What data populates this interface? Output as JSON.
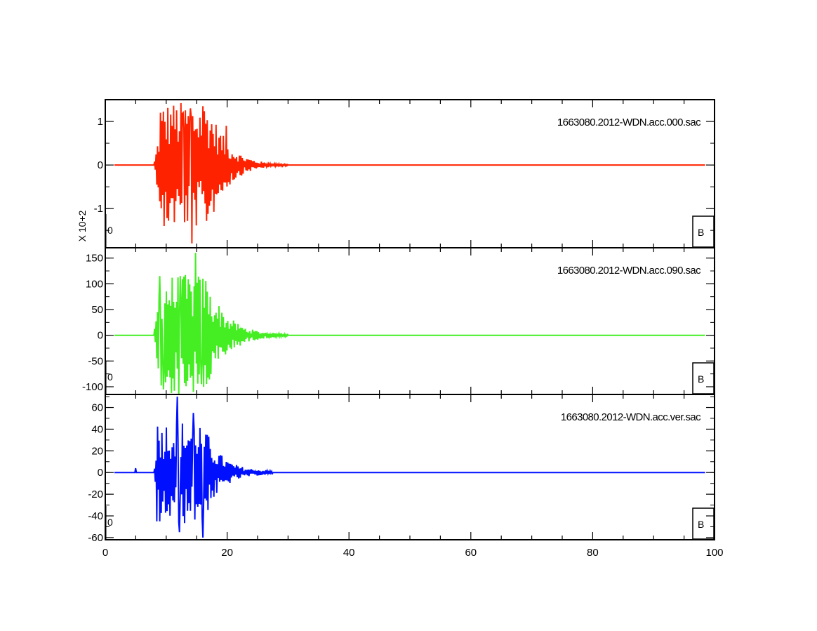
{
  "chart_data": {
    "type": "line",
    "x_range": [
      0,
      100
    ],
    "x_ticks": [
      0,
      20,
      40,
      60,
      80,
      100
    ],
    "x_tick_labels": [
      "0",
      "20",
      "40",
      "60",
      "80",
      "100"
    ],
    "grid": false,
    "panels": [
      {
        "title": "1663080.2012-WDN.acc.000.sac",
        "color": "#ff2200",
        "scale_label": "X 10+2",
        "y_range": [
          -1.9,
          1.5
        ],
        "y_ticks": [
          1,
          0,
          -1
        ],
        "y_tick_labels": [
          "1",
          "0",
          "-1"
        ],
        "begin_marker": "0",
        "end_marker": "B",
        "envelope": {
          "onset": 8.0,
          "peak_start": 9.5,
          "peak_end": 17.0,
          "end": 30.0,
          "pre_amp": 0.01,
          "peak_amp": 1.45,
          "tail_amp": 0.02
        },
        "peak_points": [
          [
            9.0,
            1.2
          ],
          [
            9.6,
            -1.4
          ],
          [
            11.0,
            0.9
          ],
          [
            12.8,
            1.2
          ],
          [
            14.0,
            1.3
          ],
          [
            14.2,
            -1.8
          ],
          [
            16.0,
            1.35
          ],
          [
            19.9,
            0.9
          ]
        ]
      },
      {
        "title": "1663080.2012-WDN.acc.090.sac",
        "color": "#44ee22",
        "scale_label": "",
        "y_range": [
          -115,
          170
        ],
        "y_ticks": [
          150,
          100,
          50,
          0,
          -50,
          -100
        ],
        "y_tick_labels": [
          "150",
          "100",
          "50",
          "0",
          "-50",
          "-100"
        ],
        "begin_marker": "0",
        "end_marker": "B",
        "envelope": {
          "onset": 8.0,
          "peak_start": 9.0,
          "peak_end": 16.5,
          "end": 30.0,
          "pre_amp": 3,
          "peak_amp": 118,
          "tail_amp": 3
        },
        "peak_points": [
          [
            8.9,
            115
          ],
          [
            9.5,
            -105
          ],
          [
            12.3,
            115
          ],
          [
            14.8,
            160
          ],
          [
            15.8,
            -95
          ],
          [
            17.2,
            75
          ]
        ]
      },
      {
        "title": "1663080.2012-WDN.acc.ver.sac",
        "color": "#0010ff",
        "scale_label": "",
        "y_range": [
          -62,
          72
        ],
        "y_ticks": [
          60,
          40,
          20,
          0,
          -20,
          -40,
          -60
        ],
        "y_tick_labels": [
          "60",
          "40",
          "20",
          "0",
          "-20",
          "-40",
          "-60"
        ],
        "begin_marker": "0",
        "end_marker": "B",
        "envelope": {
          "onset": 8.0,
          "peak_start": 8.5,
          "peak_end": 16.0,
          "end": 27.5,
          "pre_amp": 2,
          "peak_amp": 48,
          "tail_amp": 2
        },
        "peak_points": [
          [
            5.0,
            4
          ],
          [
            8.5,
            -45
          ],
          [
            11.8,
            70
          ],
          [
            12.2,
            -55
          ],
          [
            16.0,
            -60
          ],
          [
            14.5,
            55
          ]
        ]
      }
    ]
  }
}
